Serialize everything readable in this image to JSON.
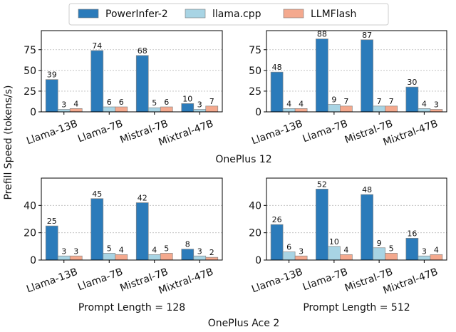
{
  "legend": {
    "placement": "top",
    "items": [
      {
        "label": "PowerInfer-2",
        "color": "#2b7bba"
      },
      {
        "label": "llama.cpp",
        "color": "#a8d4e4"
      },
      {
        "label": "LLMFlash",
        "color": "#f4a98e"
      }
    ]
  },
  "ylabel": "Prefill Speed (tokens/s)",
  "group_titles": [
    "OnePlus 12",
    "OnePlus Ace 2"
  ],
  "chart_data": [
    {
      "type": "bar",
      "xlabel": "",
      "ylim": [
        0,
        98
      ],
      "yticks": [
        0,
        25,
        50,
        75
      ],
      "grid": true,
      "categories": [
        "Llama-13B",
        "Llama-7B",
        "Mistral-7B",
        "Mixtral-47B"
      ],
      "series": [
        {
          "name": "PowerInfer-2",
          "values": [
            39,
            74,
            68,
            10
          ]
        },
        {
          "name": "llama.cpp",
          "values": [
            3,
            6,
            5,
            3
          ]
        },
        {
          "name": "LLMFlash",
          "values": [
            4,
            6,
            6,
            7
          ]
        }
      ]
    },
    {
      "type": "bar",
      "xlabel": "",
      "ylim": [
        0,
        98
      ],
      "yticks": [
        0,
        25,
        50,
        75
      ],
      "grid": true,
      "categories": [
        "Llama-13B",
        "Llama-7B",
        "Mistral-7B",
        "Mixtral-47B"
      ],
      "series": [
        {
          "name": "PowerInfer-2",
          "values": [
            48,
            88,
            87,
            30
          ]
        },
        {
          "name": "llama.cpp",
          "values": [
            4,
            9,
            7,
            4
          ]
        },
        {
          "name": "LLMFlash",
          "values": [
            4,
            7,
            7,
            3
          ]
        }
      ]
    },
    {
      "type": "bar",
      "xlabel": "Prompt Length = 128",
      "ylim": [
        0,
        60
      ],
      "yticks": [
        0,
        20,
        40
      ],
      "grid": true,
      "categories": [
        "Llama-13B",
        "Llama-7B",
        "Mistral-7B",
        "Mixtral-47B"
      ],
      "series": [
        {
          "name": "PowerInfer-2",
          "values": [
            25,
            45,
            42,
            8
          ]
        },
        {
          "name": "llama.cpp",
          "values": [
            3,
            5,
            4,
            3
          ]
        },
        {
          "name": "LLMFlash",
          "values": [
            3,
            4,
            5,
            2
          ]
        }
      ]
    },
    {
      "type": "bar",
      "xlabel": "Prompt Length = 512",
      "ylim": [
        0,
        60
      ],
      "yticks": [
        0,
        20,
        40
      ],
      "grid": true,
      "categories": [
        "Llama-13B",
        "Llama-7B",
        "Mistral-7B",
        "Mixtral-47B"
      ],
      "series": [
        {
          "name": "PowerInfer-2",
          "values": [
            26,
            52,
            48,
            16
          ]
        },
        {
          "name": "llama.cpp",
          "values": [
            6,
            10,
            9,
            3
          ]
        },
        {
          "name": "LLMFlash",
          "values": [
            3,
            4,
            5,
            4
          ]
        }
      ]
    }
  ]
}
